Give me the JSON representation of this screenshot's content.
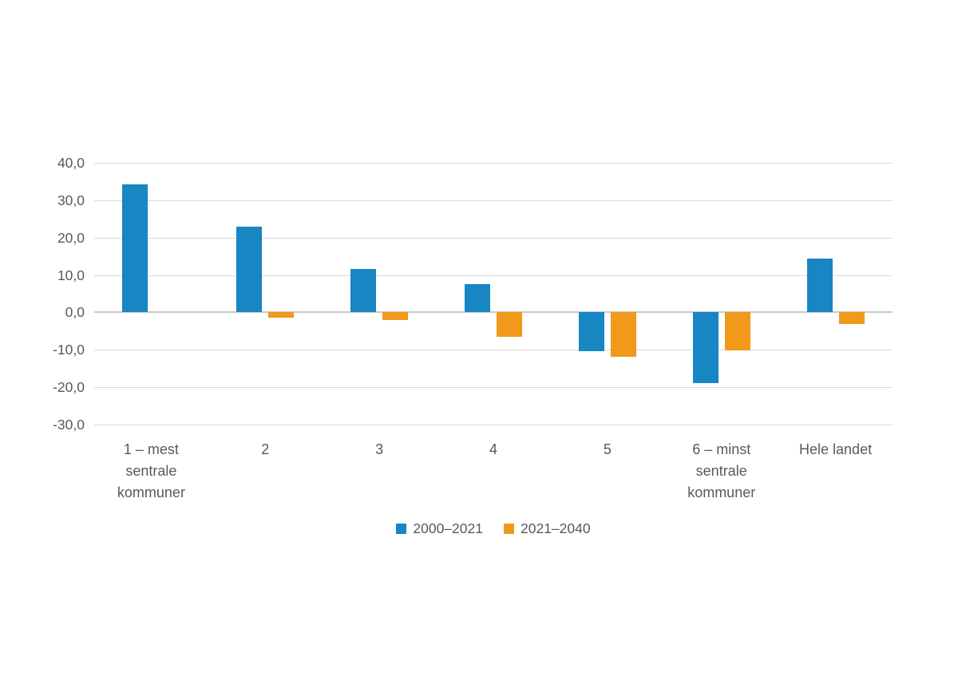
{
  "chart_data": {
    "type": "bar",
    "title": "",
    "xlabel": "",
    "ylabel": "",
    "categories": [
      "1 – mest sentrale kommuner",
      "2",
      "3",
      "4",
      "5",
      "6 – minst sentrale kommuner",
      "Hele landet"
    ],
    "series": [
      {
        "name": "2000–2021",
        "color": "#1786C2",
        "values": [
          34.3,
          23.0,
          11.7,
          7.5,
          -10.4,
          -19.0,
          14.3
        ]
      },
      {
        "name": "2021–2040",
        "color": "#F0991A",
        "values": [
          0.0,
          -1.4,
          -2.0,
          -6.6,
          -11.9,
          -10.1,
          -3.1
        ]
      }
    ],
    "ylim": [
      -30,
      40
    ],
    "ytick_step": 10,
    "ytick_values": [
      40,
      30,
      20,
      10,
      0,
      -10,
      -20,
      -30
    ],
    "ytick_labels": [
      "40,0",
      "30,0",
      "20,0",
      "10,0",
      "0,0",
      "-10,0",
      "-20,0",
      "-30,0"
    ],
    "grid": true,
    "legend_position": "bottom"
  },
  "style": {
    "grid_color": "#d9d9d9",
    "zero_line_color": "#c9c9c9",
    "text_color": "#595959",
    "background": "#ffffff"
  }
}
